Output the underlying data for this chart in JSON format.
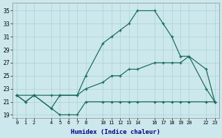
{
  "xlabel": "Humidex (Indice chaleur)",
  "line_color": "#1a6b5a",
  "background_color": "#cce8ec",
  "grid_color": "#a8d0d8",
  "xlim": [
    -0.5,
    23.5
  ],
  "ylim": [
    18.5,
    36.2
  ],
  "xticks": [
    0,
    1,
    2,
    4,
    5,
    6,
    7,
    8,
    10,
    11,
    12,
    13,
    14,
    16,
    17,
    18,
    19,
    20,
    22,
    23
  ],
  "yticks": [
    19,
    21,
    23,
    25,
    27,
    29,
    31,
    33,
    35
  ],
  "line1_x": [
    0,
    1,
    2,
    4,
    5,
    6,
    7,
    8,
    10,
    11,
    12,
    13,
    14,
    16,
    17,
    18,
    19,
    20,
    22,
    23
  ],
  "line1_y": [
    22,
    21,
    22,
    20,
    19,
    19,
    19,
    21,
    21,
    21,
    21,
    21,
    21,
    21,
    21,
    21,
    21,
    21,
    21,
    21
  ],
  "line2_x": [
    0,
    2,
    4,
    5,
    7,
    8,
    10,
    11,
    12,
    13,
    14,
    16,
    17,
    18,
    19,
    20,
    22,
    23
  ],
  "line2_y": [
    22,
    22,
    22,
    22,
    22,
    23,
    24,
    25,
    25,
    26,
    26,
    27,
    27,
    27,
    27,
    28,
    26,
    21
  ],
  "line3_x": [
    0,
    1,
    2,
    4,
    5,
    7,
    8,
    10,
    11,
    12,
    13,
    14,
    16,
    17,
    18,
    19,
    20,
    22,
    23
  ],
  "line3_y": [
    22,
    21,
    22,
    20,
    22,
    22,
    25,
    30,
    31,
    32,
    33,
    35,
    35,
    33,
    31,
    28,
    28,
    23,
    21
  ]
}
